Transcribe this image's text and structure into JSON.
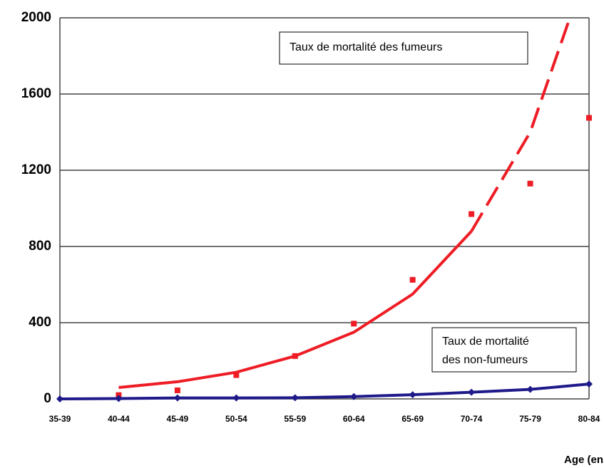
{
  "chart_data": {
    "type": "line",
    "categories": [
      "35-39",
      "40-44",
      "45-49",
      "50-54",
      "55-59",
      "60-64",
      "65-69",
      "70-74",
      "75-79",
      "80-84"
    ],
    "series": [
      {
        "color": "#ee1c24",
        "marker": "square",
        "line": false,
        "values": [
          null,
          20,
          45,
          125,
          225,
          395,
          625,
          970,
          1130,
          1475
        ]
      },
      {
        "color": "#ee1c24",
        "marker": "none",
        "line": true,
        "dashed": false,
        "values": [
          null,
          60,
          90,
          140,
          225,
          350,
          550,
          880,
          null,
          null
        ]
      },
      {
        "color": "#ee1c24",
        "marker": "none",
        "line": true,
        "dashed": true,
        "values": [
          null,
          null,
          null,
          null,
          null,
          null,
          null,
          880,
          1400,
          2290
        ]
      },
      {
        "color": "#1f1a8a",
        "marker": "diamond",
        "line": true,
        "dashed": false,
        "values": [
          0,
          2,
          5,
          5,
          6,
          12,
          22,
          35,
          50,
          78
        ]
      }
    ],
    "ylim": [
      0,
      2000
    ],
    "yticks": [
      0,
      400,
      800,
      1200,
      1600,
      2000
    ],
    "grid": true,
    "xlabel": "Age (en",
    "annotations": [
      {
        "lines": [
          "Taux de mortalité des fumeurs"
        ]
      },
      {
        "lines": [
          "Taux de mortalité",
          "des non-fumeurs"
        ]
      }
    ]
  }
}
